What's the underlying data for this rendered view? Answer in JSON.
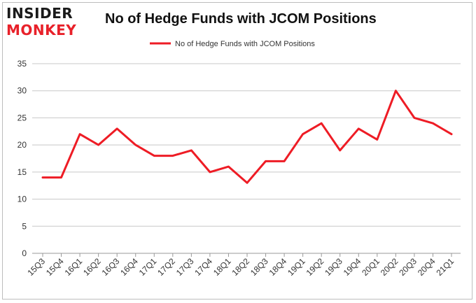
{
  "logo": {
    "line1": "INSIDER",
    "line2": "MONKEY"
  },
  "colors": {
    "series": "#ee1c25",
    "grid": "#c8c8c8",
    "brand_red": "#e8212a"
  },
  "chart_data": {
    "type": "line",
    "title": "No of Hedge Funds with JCOM Positions",
    "xlabel": "",
    "ylabel": "",
    "ylim": [
      0,
      35
    ],
    "yticks": [
      0,
      5,
      10,
      15,
      20,
      25,
      30,
      35
    ],
    "grid": true,
    "legend_position": "top-center",
    "categories": [
      "15Q3",
      "15Q4",
      "16Q1",
      "16Q2",
      "16Q3",
      "16Q4",
      "17Q1",
      "17Q2",
      "17Q3",
      "17Q4",
      "18Q1",
      "18Q2",
      "18Q3",
      "18Q4",
      "19Q1",
      "19Q2",
      "19Q3",
      "19Q4",
      "20Q1",
      "20Q2",
      "20Q3",
      "20Q4",
      "21Q1"
    ],
    "series": [
      {
        "name": "No of Hedge Funds with JCOM Positions",
        "values": [
          14,
          14,
          22,
          20,
          23,
          20,
          18,
          18,
          19,
          15,
          16,
          13,
          17,
          17,
          22,
          24,
          19,
          23,
          21,
          30,
          25,
          24,
          22
        ]
      }
    ]
  }
}
